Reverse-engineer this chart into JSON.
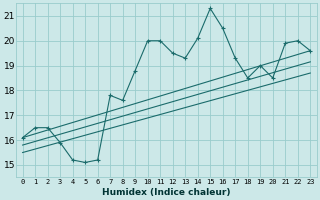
{
  "xlabel": "Humidex (Indice chaleur)",
  "xlim": [
    -0.5,
    23.5
  ],
  "ylim": [
    14.5,
    21.5
  ],
  "yticks": [
    15,
    16,
    17,
    18,
    19,
    20,
    21
  ],
  "xtick_labels": [
    "0",
    "1",
    "2",
    "3",
    "4",
    "5",
    "6",
    "7",
    "8",
    "9",
    "10",
    "11",
    "12",
    "13",
    "14",
    "15",
    "16",
    "17",
    "18",
    "19",
    "20",
    "21",
    "22",
    "23"
  ],
  "bg_color": "#cce8e8",
  "line_color": "#1a6b6b",
  "grid_color": "#99cccc",
  "main_line_x": [
    0,
    1,
    2,
    3,
    4,
    5,
    6,
    7,
    8,
    9,
    10,
    11,
    12,
    13,
    14,
    15,
    16,
    17,
    18,
    19,
    20,
    21,
    22,
    23
  ],
  "main_line_y": [
    16.1,
    16.5,
    16.5,
    15.9,
    15.2,
    15.1,
    15.2,
    17.8,
    17.6,
    18.8,
    20.0,
    20.0,
    19.5,
    19.3,
    20.1,
    21.3,
    20.5,
    19.3,
    18.5,
    19.0,
    18.5,
    19.9,
    20.0,
    19.6
  ],
  "trend_line1_x": [
    0,
    23
  ],
  "trend_line1_y": [
    16.1,
    19.6
  ],
  "trend_line2_x": [
    0,
    23
  ],
  "trend_line2_y": [
    15.8,
    19.15
  ],
  "trend_line3_x": [
    0,
    23
  ],
  "trend_line3_y": [
    15.5,
    18.7
  ]
}
